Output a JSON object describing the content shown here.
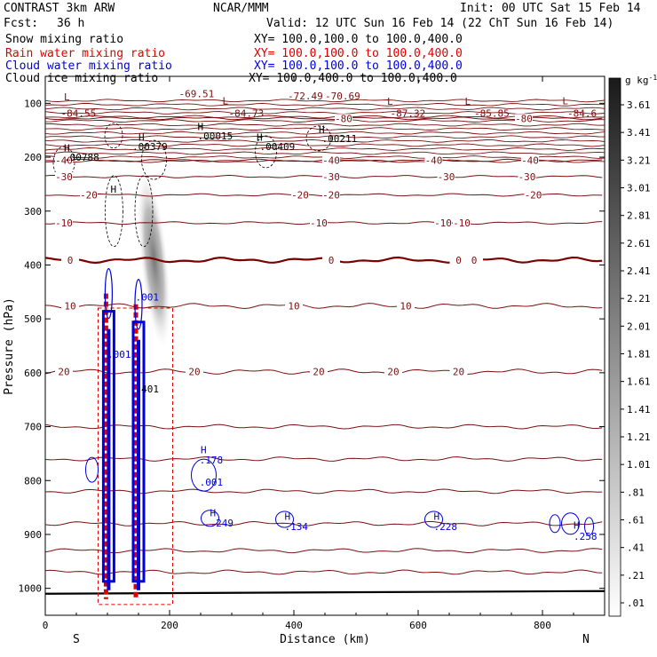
{
  "header": {
    "model": "CONTRAST  3km ARW",
    "center": "NCAR/MMM",
    "init": "Init: 00 UTC Sat 15 Feb 14",
    "fcst_label": "Fcst:",
    "fcst_value": "36 h",
    "valid": "Valid: 12 UTC Sun 16 Feb 14 (22 ChT Sun 16 Feb 14)"
  },
  "legend": [
    {
      "name": "Snow mixing ratio",
      "xy": "XY= 100.0,100.0 to 100.0,400.0",
      "color": "#000000"
    },
    {
      "name": "Rain water mixing ratio",
      "xy": "XY= 100.0,100.0 to 100.0,400.0",
      "color": "#e00000"
    },
    {
      "name": "Cloud water mixing ratio",
      "xy": "XY= 100.0,100.0 to 100.0,400.0",
      "color": "#0000e0"
    },
    {
      "name": "Cloud ice mixing ratio",
      "xy": "XY= 100.0,400.0 to 100.0,400.0",
      "color": "#000000"
    }
  ],
  "colors": {
    "temperature": "#7a1010",
    "freezing": "#7a0000",
    "rain": "#e00000",
    "cloud": "#0000e0",
    "snow": "#000000",
    "ground": "#000000"
  },
  "chart_data": {
    "type": "cross-section",
    "xlabel": "Distance (km)",
    "ylabel": "Pressure (hPa)",
    "xlim": [
      0,
      900
    ],
    "ylim": [
      1050,
      50
    ],
    "x_ticks": [
      0,
      200,
      400,
      600,
      800
    ],
    "y_ticks": [
      100,
      200,
      300,
      400,
      500,
      600,
      700,
      800,
      900,
      1000
    ],
    "x_end_labels": {
      "left": "S",
      "right": "N"
    },
    "colorbar": {
      "unit": "g kg",
      "unit_exp": "-1",
      "ticks": [
        "3.61",
        "3.41",
        "3.21",
        "3.01",
        "2.81",
        "2.61",
        "2.41",
        "2.21",
        "2.01",
        "1.81",
        "1.61",
        "1.41",
        "1.21",
        "1.01",
        ".81",
        ".61",
        ".41",
        ".21",
        ".01"
      ]
    },
    "temperature_contours": [
      {
        "value": -80,
        "p": 128
      },
      {
        "value": -40,
        "p": 206
      },
      {
        "value": -30,
        "p": 236
      },
      {
        "value": -20,
        "p": 270
      },
      {
        "value": -10,
        "p": 322
      },
      {
        "value": 0,
        "p": 391
      },
      {
        "value": 10,
        "p": 476
      },
      {
        "value": 20,
        "p": 598
      }
    ],
    "temperature_labels": [
      {
        "text": "-80",
        "x": 480,
        "p": 128
      },
      {
        "text": "-80",
        "x": 770,
        "p": 128
      },
      {
        "text": "-40",
        "x": 30,
        "p": 206
      },
      {
        "text": "-40",
        "x": 460,
        "p": 206
      },
      {
        "text": "-40",
        "x": 625,
        "p": 206
      },
      {
        "text": "-40",
        "x": 780,
        "p": 206
      },
      {
        "text": "-30",
        "x": 30,
        "p": 236
      },
      {
        "text": "-30",
        "x": 460,
        "p": 236
      },
      {
        "text": "-30",
        "x": 645,
        "p": 236
      },
      {
        "text": "-30",
        "x": 775,
        "p": 236
      },
      {
        "text": "-20",
        "x": 70,
        "p": 270
      },
      {
        "text": "-20",
        "x": 410,
        "p": 270
      },
      {
        "text": "-20",
        "x": 460,
        "p": 270
      },
      {
        "text": "-20",
        "x": 785,
        "p": 270
      },
      {
        "text": "-10",
        "x": 30,
        "p": 322
      },
      {
        "text": "-10",
        "x": 440,
        "p": 322
      },
      {
        "text": "-10",
        "x": 640,
        "p": 322
      },
      {
        "text": "-10",
        "x": 670,
        "p": 322
      },
      {
        "text": "0",
        "x": 40,
        "p": 391
      },
      {
        "text": "0",
        "x": 460,
        "p": 391
      },
      {
        "text": "0",
        "x": 665,
        "p": 391
      },
      {
        "text": "0",
        "x": 690,
        "p": 391
      },
      {
        "text": "10",
        "x": 40,
        "p": 476
      },
      {
        "text": "10",
        "x": 400,
        "p": 476
      },
      {
        "text": "10",
        "x": 580,
        "p": 476
      },
      {
        "text": "20",
        "x": 30,
        "p": 598
      },
      {
        "text": "20",
        "x": 440,
        "p": 598
      },
      {
        "text": "20",
        "x": 560,
        "p": 598
      },
      {
        "text": "20",
        "x": 665,
        "p": 598
      },
      {
        "text": "20",
        "x": 240,
        "p": 598
      }
    ],
    "extrema_labels": [
      {
        "text": "-84.55",
        "x": 25,
        "p": 118,
        "color": "#7a1010"
      },
      {
        "text": "L",
        "x": 30,
        "p": 88,
        "color": "#7a1010"
      },
      {
        "text": "-69.51",
        "x": 215,
        "p": 82,
        "color": "#7a1010"
      },
      {
        "text": "-84.73",
        "x": 295,
        "p": 118,
        "color": "#7a1010"
      },
      {
        "text": "L",
        "x": 285,
        "p": 95,
        "color": "#7a1010"
      },
      {
        "text": "-72.49",
        "x": 390,
        "p": 86,
        "color": "#7a1010"
      },
      {
        "text": "-70.69",
        "x": 450,
        "p": 86,
        "color": "#7a1010"
      },
      {
        "text": "-87.32",
        "x": 555,
        "p": 118,
        "color": "#7a1010"
      },
      {
        "text": "L",
        "x": 550,
        "p": 96,
        "color": "#7a1010"
      },
      {
        "text": "-85.85",
        "x": 690,
        "p": 118,
        "color": "#7a1010"
      },
      {
        "text": "L",
        "x": 675,
        "p": 96,
        "color": "#7a1010"
      },
      {
        "text": "-84.6",
        "x": 840,
        "p": 118,
        "color": "#7a1010"
      },
      {
        "text": "L",
        "x": 832,
        "p": 95,
        "color": "#7a1010"
      },
      {
        "text": ".00015",
        "x": 245,
        "p": 160,
        "color": "#000000"
      },
      {
        "text": "H",
        "x": 245,
        "p": 143,
        "color": "#000000"
      },
      {
        "text": ".00211",
        "x": 445,
        "p": 165,
        "color": "#000000"
      },
      {
        "text": "H",
        "x": 440,
        "p": 148,
        "color": "#000000"
      },
      {
        "text": ".00409",
        "x": 345,
        "p": 180,
        "color": "#000000"
      },
      {
        "text": "H",
        "x": 340,
        "p": 163,
        "color": "#000000"
      },
      {
        "text": ".00379",
        "x": 140,
        "p": 180,
        "color": "#000000"
      },
      {
        "text": "H",
        "x": 150,
        "p": 163,
        "color": "#000000"
      },
      {
        "text": ".00788",
        "x": 30,
        "p": 200,
        "color": "#000000"
      },
      {
        "text": "H",
        "x": 30,
        "p": 183,
        "color": "#000000"
      },
      {
        "text": "H",
        "x": 105,
        "p": 259,
        "color": "#000000"
      },
      {
        "text": ".001",
        "x": 100,
        "p": 566,
        "color": "#0000e0"
      },
      {
        "text": ".178",
        "x": 248,
        "p": 762,
        "color": "#0000e0"
      },
      {
        "text": "H",
        "x": 250,
        "p": 743,
        "color": "#0000e0"
      },
      {
        "text": ".001",
        "x": 248,
        "p": 803,
        "color": "#0000e0"
      },
      {
        "text": ".249",
        "x": 265,
        "p": 879,
        "color": "#0000e0"
      },
      {
        "text": "H",
        "x": 265,
        "p": 860,
        "color": "#0000e0"
      },
      {
        "text": ".134",
        "x": 385,
        "p": 885,
        "color": "#0000e0"
      },
      {
        "text": "H",
        "x": 385,
        "p": 866,
        "color": "#0000e0"
      },
      {
        "text": ".228",
        "x": 625,
        "p": 885,
        "color": "#0000e0"
      },
      {
        "text": "H",
        "x": 625,
        "p": 866,
        "color": "#0000e0"
      },
      {
        "text": ".258",
        "x": 850,
        "p": 903,
        "color": "#0000e0"
      },
      {
        "text": "H",
        "x": 850,
        "p": 883,
        "color": "#0000e0"
      },
      {
        "text": ".001",
        "x": 145,
        "p": 459,
        "color": "#0000e0"
      },
      {
        "text": ".401",
        "x": 145,
        "p": 630,
        "color": "#000000"
      }
    ],
    "rain_region": {
      "x_from": 85,
      "x_to": 205,
      "p_top": 480,
      "p_bottom": 1030
    },
    "cloud_columns": [
      {
        "x": 102,
        "p_top": 420,
        "p_bottom": 1020
      },
      {
        "x": 150,
        "p_top": 440,
        "p_bottom": 1020
      }
    ],
    "snow_shading": {
      "x": 175,
      "p_top": 220,
      "p_bottom": 560
    }
  }
}
